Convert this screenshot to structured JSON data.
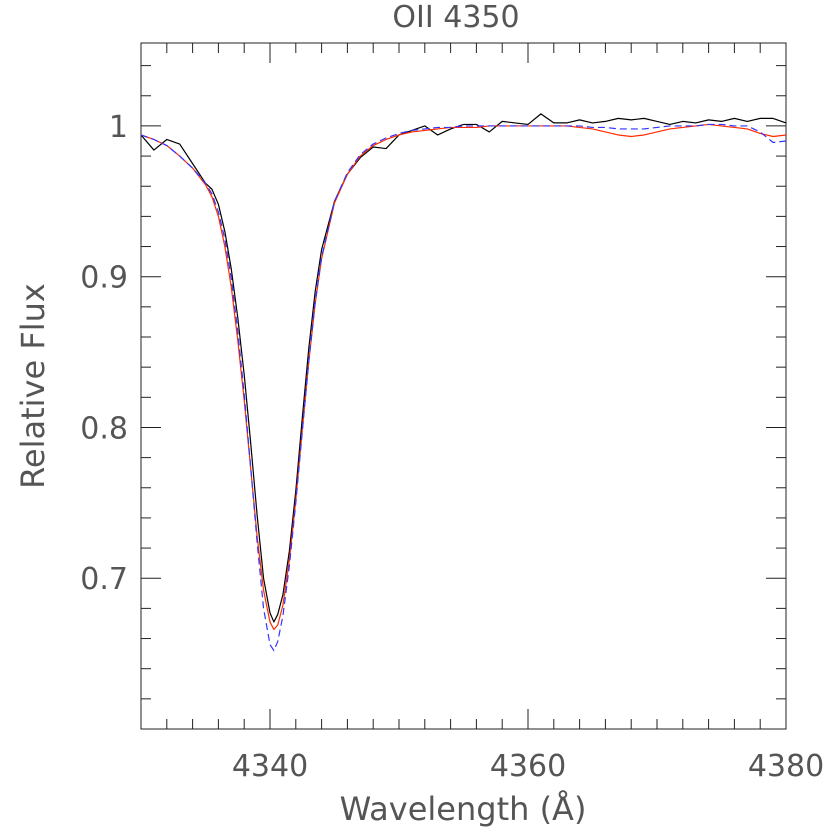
{
  "chart_data": {
    "type": "line",
    "title": "OII 4350",
    "xlabel": "Wavelength (Å)",
    "ylabel": "Relative Flux",
    "xlim": [
      4330,
      4380
    ],
    "ylim": [
      0.6,
      1.055
    ],
    "x_ticks": [
      4340,
      4360,
      4380
    ],
    "x_tick_labels": [
      "4340",
      "4360",
      "4380"
    ],
    "y_ticks": [
      0.7,
      0.8,
      0.9,
      1.0
    ],
    "y_tick_labels": [
      "0.7",
      "0.8",
      "0.9",
      "1"
    ],
    "grid": false,
    "series": [
      {
        "style": "solid",
        "color": "#000000",
        "x": [
          4330,
          4331,
          4332,
          4333,
          4334,
          4335,
          4335.5,
          4336,
          4336.5,
          4337,
          4337.5,
          4338,
          4338.5,
          4339,
          4339.5,
          4340,
          4340.3,
          4340.6,
          4341,
          4341.5,
          4342,
          4342.5,
          4343,
          4343.5,
          4344,
          4345,
          4346,
          4347,
          4348,
          4349,
          4350,
          4351,
          4352,
          4353,
          4354,
          4355,
          4356,
          4357,
          4358,
          4359,
          4360,
          4361,
          4362,
          4363,
          4364,
          4365,
          4366,
          4367,
          4368,
          4369,
          4370,
          4371,
          4372,
          4373,
          4374,
          4375,
          4376,
          4377,
          4378,
          4379,
          4380
        ],
        "y": [
          0.994,
          0.984,
          0.991,
          0.988,
          0.975,
          0.962,
          0.958,
          0.948,
          0.93,
          0.905,
          0.873,
          0.835,
          0.79,
          0.742,
          0.7,
          0.677,
          0.671,
          0.676,
          0.689,
          0.718,
          0.758,
          0.806,
          0.852,
          0.89,
          0.918,
          0.95,
          0.968,
          0.979,
          0.986,
          0.985,
          0.994,
          0.997,
          1.0,
          0.994,
          0.998,
          1.001,
          1.001,
          0.996,
          1.003,
          1.002,
          1.001,
          1.008,
          1.002,
          1.002,
          1.004,
          1.002,
          1.003,
          1.005,
          1.004,
          1.005,
          1.003,
          1.001,
          1.003,
          1.002,
          1.004,
          1.003,
          1.005,
          1.003,
          1.005,
          1.005,
          1.002
        ]
      },
      {
        "style": "solid",
        "color": "#ff2a00",
        "x": [
          4330,
          4331,
          4332,
          4333,
          4334,
          4335,
          4335.5,
          4336,
          4336.5,
          4337,
          4337.5,
          4338,
          4338.5,
          4339,
          4339.5,
          4340,
          4340.3,
          4340.6,
          4341,
          4341.5,
          4342,
          4342.5,
          4343,
          4343.5,
          4344,
          4345,
          4346,
          4347,
          4348,
          4349,
          4350,
          4351,
          4352,
          4353,
          4354,
          4355,
          4356,
          4357,
          4358,
          4359,
          4360,
          4361,
          4362,
          4363,
          4364,
          4365,
          4366,
          4367,
          4368,
          4369,
          4370,
          4371,
          4372,
          4373,
          4374,
          4375,
          4376,
          4377,
          4378,
          4379,
          4380
        ],
        "y": [
          0.994,
          0.991,
          0.987,
          0.98,
          0.972,
          0.961,
          0.953,
          0.94,
          0.92,
          0.893,
          0.858,
          0.818,
          0.773,
          0.728,
          0.692,
          0.671,
          0.666,
          0.669,
          0.682,
          0.712,
          0.752,
          0.798,
          0.843,
          0.882,
          0.912,
          0.949,
          0.968,
          0.98,
          0.987,
          0.991,
          0.994,
          0.996,
          0.997,
          0.998,
          0.999,
          0.999,
          0.999,
          1.0,
          1.0,
          1.0,
          1.0,
          1.0,
          1.0,
          1.0,
          0.999,
          0.998,
          0.996,
          0.994,
          0.993,
          0.994,
          0.996,
          0.998,
          0.999,
          1.0,
          1.001,
          1.0,
          0.999,
          0.998,
          0.995,
          0.993,
          0.994
        ]
      },
      {
        "style": "dashed",
        "color": "#3333ff",
        "x": [
          4330,
          4331,
          4332,
          4333,
          4334,
          4335,
          4335.5,
          4336,
          4336.5,
          4337,
          4337.5,
          4338,
          4338.5,
          4339,
          4339.5,
          4340,
          4340.3,
          4340.6,
          4341,
          4341.5,
          4342,
          4342.5,
          4343,
          4343.5,
          4344,
          4345,
          4346,
          4347,
          4348,
          4349,
          4350,
          4351,
          4352,
          4353,
          4354,
          4355,
          4356,
          4357,
          4358,
          4359,
          4360,
          4361,
          4362,
          4363,
          4364,
          4365,
          4366,
          4367,
          4368,
          4369,
          4370,
          4371,
          4372,
          4373,
          4374,
          4375,
          4376,
          4377,
          4378,
          4379,
          4380
        ],
        "y": [
          0.994,
          0.991,
          0.987,
          0.98,
          0.972,
          0.962,
          0.955,
          0.943,
          0.925,
          0.899,
          0.864,
          0.822,
          0.774,
          0.724,
          0.68,
          0.656,
          0.652,
          0.658,
          0.675,
          0.708,
          0.75,
          0.797,
          0.843,
          0.883,
          0.913,
          0.95,
          0.969,
          0.981,
          0.988,
          0.992,
          0.995,
          0.997,
          0.998,
          0.999,
          0.999,
          1.0,
          1.0,
          1.0,
          1.0,
          1.0,
          1.0,
          1.0,
          1.0,
          1.0,
          1.0,
          0.999,
          0.999,
          0.998,
          0.998,
          0.998,
          0.999,
          1.0,
          1.0,
          1.0,
          1.001,
          1.001,
          1.0,
          1.0,
          0.996,
          0.989,
          0.99
        ]
      }
    ]
  }
}
